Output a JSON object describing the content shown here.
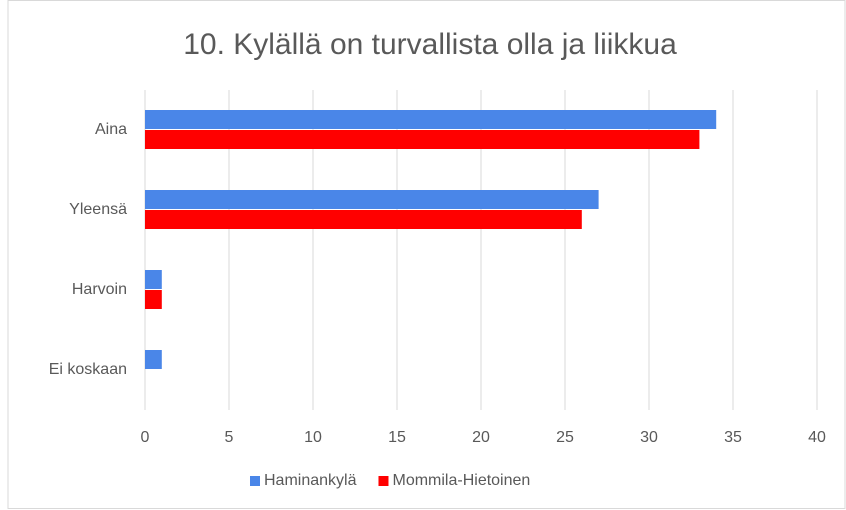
{
  "chart_data": {
    "type": "bar",
    "orientation": "horizontal",
    "title": "10. Kylällä on turvallista olla ja liikkua",
    "categories": [
      "Aina",
      "Yleensä",
      "Harvoin",
      "Ei koskaan"
    ],
    "series": [
      {
        "name": "Haminankylä",
        "color": "#4a86e8",
        "values": [
          34,
          27,
          1,
          1
        ]
      },
      {
        "name": "Mommila-Hietoinen",
        "color": "#ff0000",
        "values": [
          33,
          26,
          1,
          0
        ]
      }
    ],
    "xlim": [
      0,
      40
    ],
    "xticks": [
      0,
      5,
      10,
      15,
      20,
      25,
      30,
      35,
      40
    ],
    "grid": true,
    "legend": "bottom"
  }
}
